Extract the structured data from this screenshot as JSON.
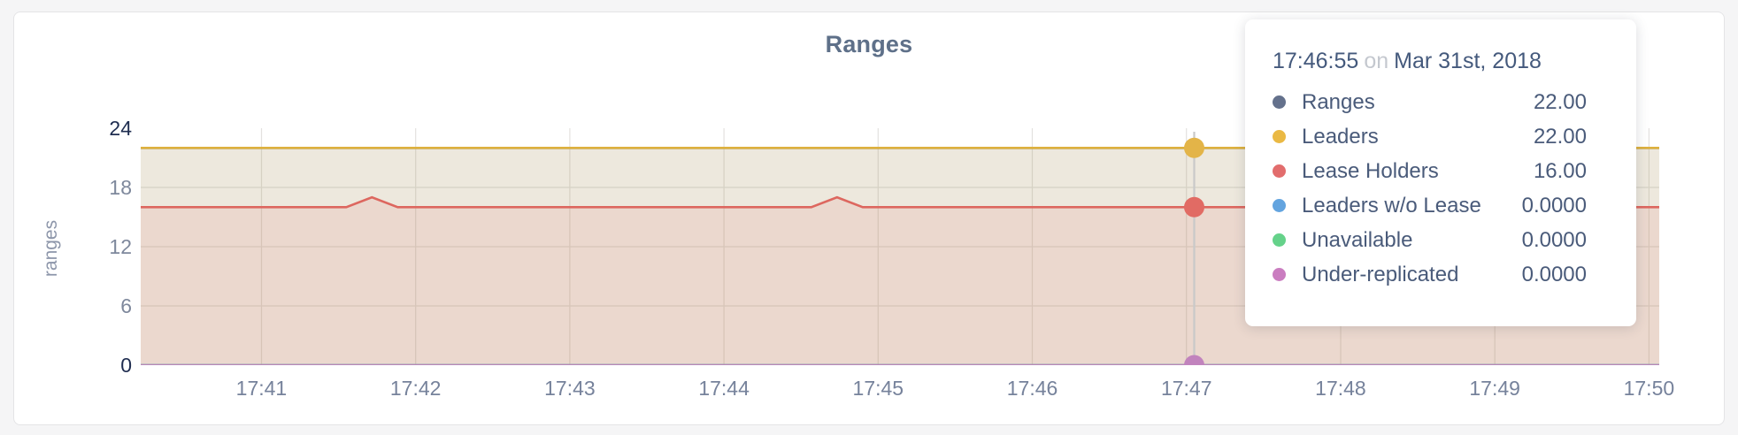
{
  "chart_card": {
    "title": "Ranges"
  },
  "chart_data": {
    "type": "area",
    "title": "Ranges",
    "xlabel": "",
    "ylabel": "ranges",
    "ylim": [
      0,
      24
    ],
    "grid": true,
    "yticks": [
      {
        "value": 0,
        "label": "0",
        "emphasis": true
      },
      {
        "value": 6,
        "label": "6",
        "emphasis": false
      },
      {
        "value": 12,
        "label": "12",
        "emphasis": false
      },
      {
        "value": 18,
        "label": "18",
        "emphasis": false
      },
      {
        "value": 24,
        "label": "24",
        "emphasis": true
      }
    ],
    "x_domain_seconds": [
      13,
      604
    ],
    "x_axis_base_time": "17:40:00",
    "x_axis": {
      "ticks": [
        {
          "label": "17:41",
          "t": 60
        },
        {
          "label": "17:42",
          "t": 120
        },
        {
          "label": "17:43",
          "t": 180
        },
        {
          "label": "17:44",
          "t": 240
        },
        {
          "label": "17:45",
          "t": 300
        },
        {
          "label": "17:46",
          "t": 360
        },
        {
          "label": "17:47",
          "t": 420
        },
        {
          "label": "17:48",
          "t": 480
        },
        {
          "label": "17:49",
          "t": 540
        },
        {
          "label": "17:50",
          "t": 600
        }
      ]
    },
    "series": [
      {
        "name": "Ranges",
        "color": "#5f6e90",
        "fill_opacity": 0.1,
        "points": [
          [
            13,
            22
          ],
          [
            604,
            22
          ]
        ]
      },
      {
        "name": "Leaders",
        "color": "#deb13d",
        "fill_opacity": 0.12,
        "points": [
          [
            13,
            22
          ],
          [
            604,
            22
          ]
        ]
      },
      {
        "name": "Lease Holders",
        "color": "#dd675f",
        "fill_opacity": 0.12,
        "points": [
          [
            13,
            16
          ],
          [
            93,
            16
          ],
          [
            103,
            17
          ],
          [
            113,
            16
          ],
          [
            274,
            16
          ],
          [
            284,
            17
          ],
          [
            294,
            16
          ],
          [
            604,
            16
          ]
        ]
      },
      {
        "name": "Leaders w/o Lease",
        "color": "#63a4df",
        "fill_opacity": 0.1,
        "points": [
          [
            13,
            0
          ],
          [
            604,
            0
          ]
        ]
      },
      {
        "name": "Unavailable",
        "color": "#65d28a",
        "fill_opacity": 0.1,
        "points": [
          [
            13,
            0
          ],
          [
            604,
            0
          ]
        ]
      },
      {
        "name": "Under-replicated",
        "color": "#b787b9",
        "fill_opacity": 0.1,
        "points": [
          [
            13,
            0
          ],
          [
            604,
            0
          ]
        ]
      }
    ],
    "hover": {
      "t": 423,
      "guideline_color": "#c9c9c9",
      "points": [
        {
          "series": "Leaders",
          "v": 22,
          "color": "#e3b448"
        },
        {
          "series": "Lease Holders",
          "v": 16,
          "color": "#e16b64"
        },
        {
          "series": "Under-replicated",
          "v": 0,
          "color": "#c183bd"
        }
      ]
    }
  },
  "tooltip": {
    "time": "17:46:55",
    "separator": "on",
    "date": "Mar 31st, 2018",
    "rows": [
      {
        "label": "Ranges",
        "value": "22.00",
        "color": "#64718c"
      },
      {
        "label": "Leaders",
        "value": "22.00",
        "color": "#eab944"
      },
      {
        "label": "Lease Holders",
        "value": "16.00",
        "color": "#e26d6d"
      },
      {
        "label": "Leaders w/o Lease",
        "value": "0.0000",
        "color": "#63a4df"
      },
      {
        "label": "Unavailable",
        "value": "0.0000",
        "color": "#65d28a"
      },
      {
        "label": "Under-replicated",
        "value": "0.0000",
        "color": "#ca7dc0"
      }
    ]
  }
}
